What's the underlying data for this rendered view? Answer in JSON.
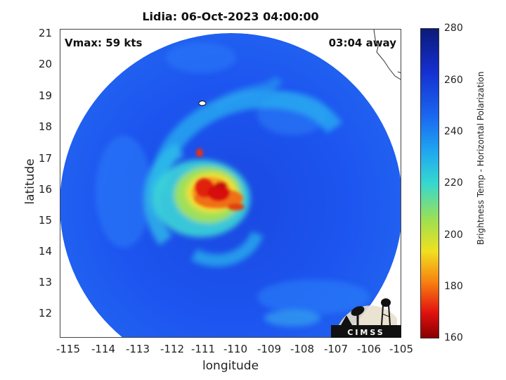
{
  "title": "Lidia: 06-Oct-2023 04:00:00",
  "annotations": {
    "vmax": "Vmax: 59 kts",
    "time_away": "03:04 away"
  },
  "axes": {
    "xlabel": "longitude",
    "ylabel": "latitude",
    "xticks": [
      "-115",
      "-114",
      "-113",
      "-112",
      "-111",
      "-110",
      "-109",
      "-108",
      "-107",
      "-106",
      "-105"
    ],
    "yticks": [
      "21",
      "20",
      "19",
      "18",
      "17",
      "16",
      "15",
      "14",
      "13",
      "12"
    ]
  },
  "colorbar": {
    "label": "Brightness Temp - Horizontal Polarization",
    "ticks": [
      "280",
      "260",
      "240",
      "220",
      "200",
      "180",
      "160"
    ],
    "range": [
      160,
      280
    ]
  },
  "logo": {
    "text": "CIMSS"
  },
  "colors": {
    "cold_core": "#d01010",
    "background_warm": "#1040e8"
  }
}
